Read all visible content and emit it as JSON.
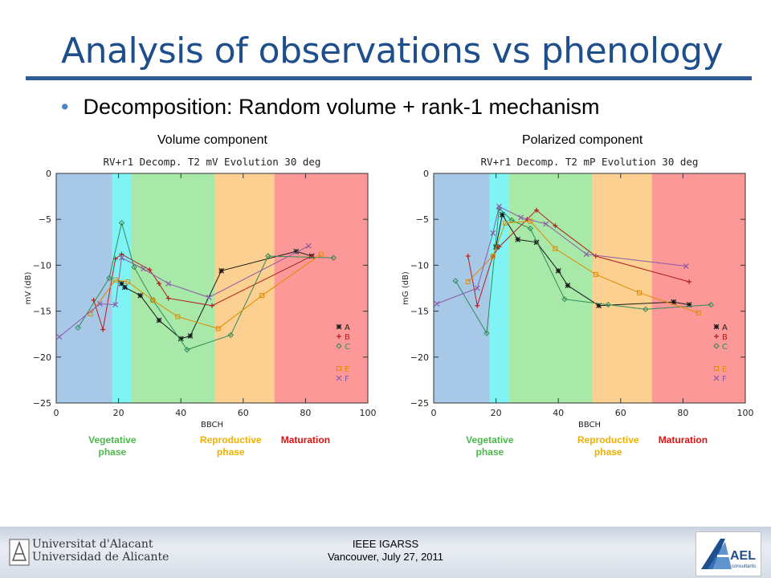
{
  "slide": {
    "title": "Analysis of observations vs phenology",
    "bullet": "Decomposition: Random volume + rank-1 mechanism",
    "left_label": "Volume component",
    "right_label": "Polarized component",
    "footer_line1": "IEEE IGARSS",
    "footer_line2": "Vancouver, July 27, 2011",
    "uni_line1": "Universitat d'Alacant",
    "uni_line2": "Universidad de Alicante",
    "ael_text": "AEL",
    "ael_sub": "consultants"
  },
  "colors": {
    "title": "#1f4e8c",
    "phase_vegetative_early": "#a8c8e8",
    "phase_cyan": "#80f4f4",
    "phase_green": "#a8e8a8",
    "phase_orange": "#fcd090",
    "phase_red": "#fc9898",
    "vegetative_label": "#4cb84c",
    "reproductive_label": "#f0b000",
    "maturation_label": "#e01010"
  },
  "chart_data": [
    {
      "type": "line",
      "title": "RV+r1 Decomp. T2 mV Evolution 30 deg",
      "xlabel": "BBCH",
      "ylabel": "mV (dB)",
      "xlim": [
        0,
        100
      ],
      "ylim": [
        -25,
        0
      ],
      "xticks": [
        0,
        20,
        40,
        60,
        80,
        100
      ],
      "yticks": [
        0,
        -5,
        -10,
        -15,
        -20,
        -25
      ],
      "phases": [
        {
          "from": 0,
          "to": 18,
          "color": "#a8c8e8"
        },
        {
          "from": 18,
          "to": 24,
          "color": "#80f4f4"
        },
        {
          "from": 24,
          "to": 51,
          "color": "#a8e8a8"
        },
        {
          "from": 51,
          "to": 70,
          "color": "#fcd090"
        },
        {
          "from": 70,
          "to": 100,
          "color": "#fc9898"
        }
      ],
      "phase_labels": [
        {
          "text": "Vegetative\nphase",
          "x": 18,
          "color": "#4cb84c"
        },
        {
          "text": "Reproductive\nphase",
          "x": 56,
          "color": "#f0b000"
        },
        {
          "text": "Maturation",
          "x": 80,
          "color": "#e01010"
        }
      ],
      "series": [
        {
          "name": "A",
          "marker": "*",
          "color": "#1a1a1a",
          "x": [
            21,
            22,
            27,
            33,
            40,
            43,
            53,
            77,
            82
          ],
          "y": [
            -12.0,
            -12.4,
            -13.3,
            -16.0,
            -18.0,
            -17.7,
            -10.6,
            -8.5,
            -9.0
          ]
        },
        {
          "name": "B",
          "marker": "+",
          "color": "#b02020",
          "x": [
            12,
            15,
            19,
            21,
            30,
            33,
            36,
            50,
            82
          ],
          "y": [
            -13.8,
            -17.0,
            -9.3,
            -8.8,
            -10.5,
            -12.0,
            -13.6,
            -14.4,
            -9.0
          ]
        },
        {
          "name": "C",
          "marker": "d",
          "color": "#2e8b57",
          "x": [
            7,
            17,
            21,
            25,
            31,
            42,
            56,
            68,
            89
          ],
          "y": [
            -16.8,
            -11.4,
            -5.4,
            -10.2,
            -13.8,
            -19.2,
            -17.6,
            -9.0,
            -9.2
          ]
        },
        {
          "name": "E",
          "marker": "s",
          "color": "#e08a00",
          "x": [
            11,
            19,
            23,
            31,
            39,
            52,
            66,
            85
          ],
          "y": [
            -15.3,
            -11.6,
            -11.8,
            -13.8,
            -15.6,
            -16.9,
            -13.3,
            -8.8
          ]
        },
        {
          "name": "F",
          "marker": "x",
          "color": "#8a5aa8",
          "x": [
            1,
            14,
            19,
            21,
            28,
            36,
            49,
            81
          ],
          "y": [
            -17.8,
            -14.2,
            -14.3,
            -9.2,
            -10.4,
            -12.0,
            -13.5,
            -7.9
          ]
        }
      ],
      "legend": [
        "A",
        "B",
        "C",
        "E",
        "F"
      ]
    },
    {
      "type": "line",
      "title": "RV+r1 Decomp. T2 mP Evolution 30 deg",
      "xlabel": "BBCH",
      "ylabel": "mG (dB)",
      "xlim": [
        0,
        100
      ],
      "ylim": [
        -25,
        0
      ],
      "xticks": [
        0,
        20,
        40,
        60,
        80,
        100
      ],
      "yticks": [
        0,
        -5,
        -10,
        -15,
        -20,
        -25
      ],
      "phases": [
        {
          "from": 0,
          "to": 18,
          "color": "#a8c8e8"
        },
        {
          "from": 18,
          "to": 24,
          "color": "#80f4f4"
        },
        {
          "from": 24,
          "to": 51,
          "color": "#a8e8a8"
        },
        {
          "from": 51,
          "to": 70,
          "color": "#fcd090"
        },
        {
          "from": 70,
          "to": 100,
          "color": "#fc9898"
        }
      ],
      "phase_labels": [
        {
          "text": "Vegetative\nphase",
          "x": 18,
          "color": "#4cb84c"
        },
        {
          "text": "Reproductive\nphase",
          "x": 56,
          "color": "#f0b000"
        },
        {
          "text": "Maturation",
          "x": 80,
          "color": "#e01010"
        }
      ],
      "series": [
        {
          "name": "A",
          "marker": "*",
          "color": "#1a1a1a",
          "x": [
            20,
            22,
            27,
            33,
            40,
            43,
            53,
            77,
            82
          ],
          "y": [
            -8.0,
            -4.5,
            -7.2,
            -7.5,
            -10.6,
            -12.2,
            -14.4,
            -14.0,
            -14.3
          ]
        },
        {
          "name": "B",
          "marker": "+",
          "color": "#b02020",
          "x": [
            11,
            14,
            19,
            21,
            30,
            33,
            39,
            52,
            82
          ],
          "y": [
            -9.0,
            -14.4,
            -9.0,
            -8.0,
            -5.0,
            -4.0,
            -5.7,
            -9.0,
            -11.8
          ]
        },
        {
          "name": "C",
          "marker": "d",
          "color": "#2e8b57",
          "x": [
            7,
            17,
            21,
            25,
            31,
            42,
            56,
            68,
            89
          ],
          "y": [
            -11.7,
            -17.4,
            -3.8,
            -5.1,
            -6.0,
            -13.7,
            -14.3,
            -14.8,
            -14.3
          ]
        },
        {
          "name": "E",
          "marker": "s",
          "color": "#e08a00",
          "x": [
            11,
            19,
            23,
            31,
            39,
            52,
            66,
            85
          ],
          "y": [
            -11.8,
            -9.0,
            -5.4,
            -5.2,
            -8.2,
            -11.0,
            -13.0,
            -15.2
          ]
        },
        {
          "name": "F",
          "marker": "x",
          "color": "#8a5aa8",
          "x": [
            1,
            14,
            19,
            21,
            28,
            36,
            49,
            81
          ],
          "y": [
            -14.2,
            -12.5,
            -6.5,
            -3.6,
            -4.8,
            -5.5,
            -8.8,
            -10.1
          ]
        }
      ],
      "legend": [
        "A",
        "B",
        "C",
        "E",
        "F"
      ]
    }
  ]
}
